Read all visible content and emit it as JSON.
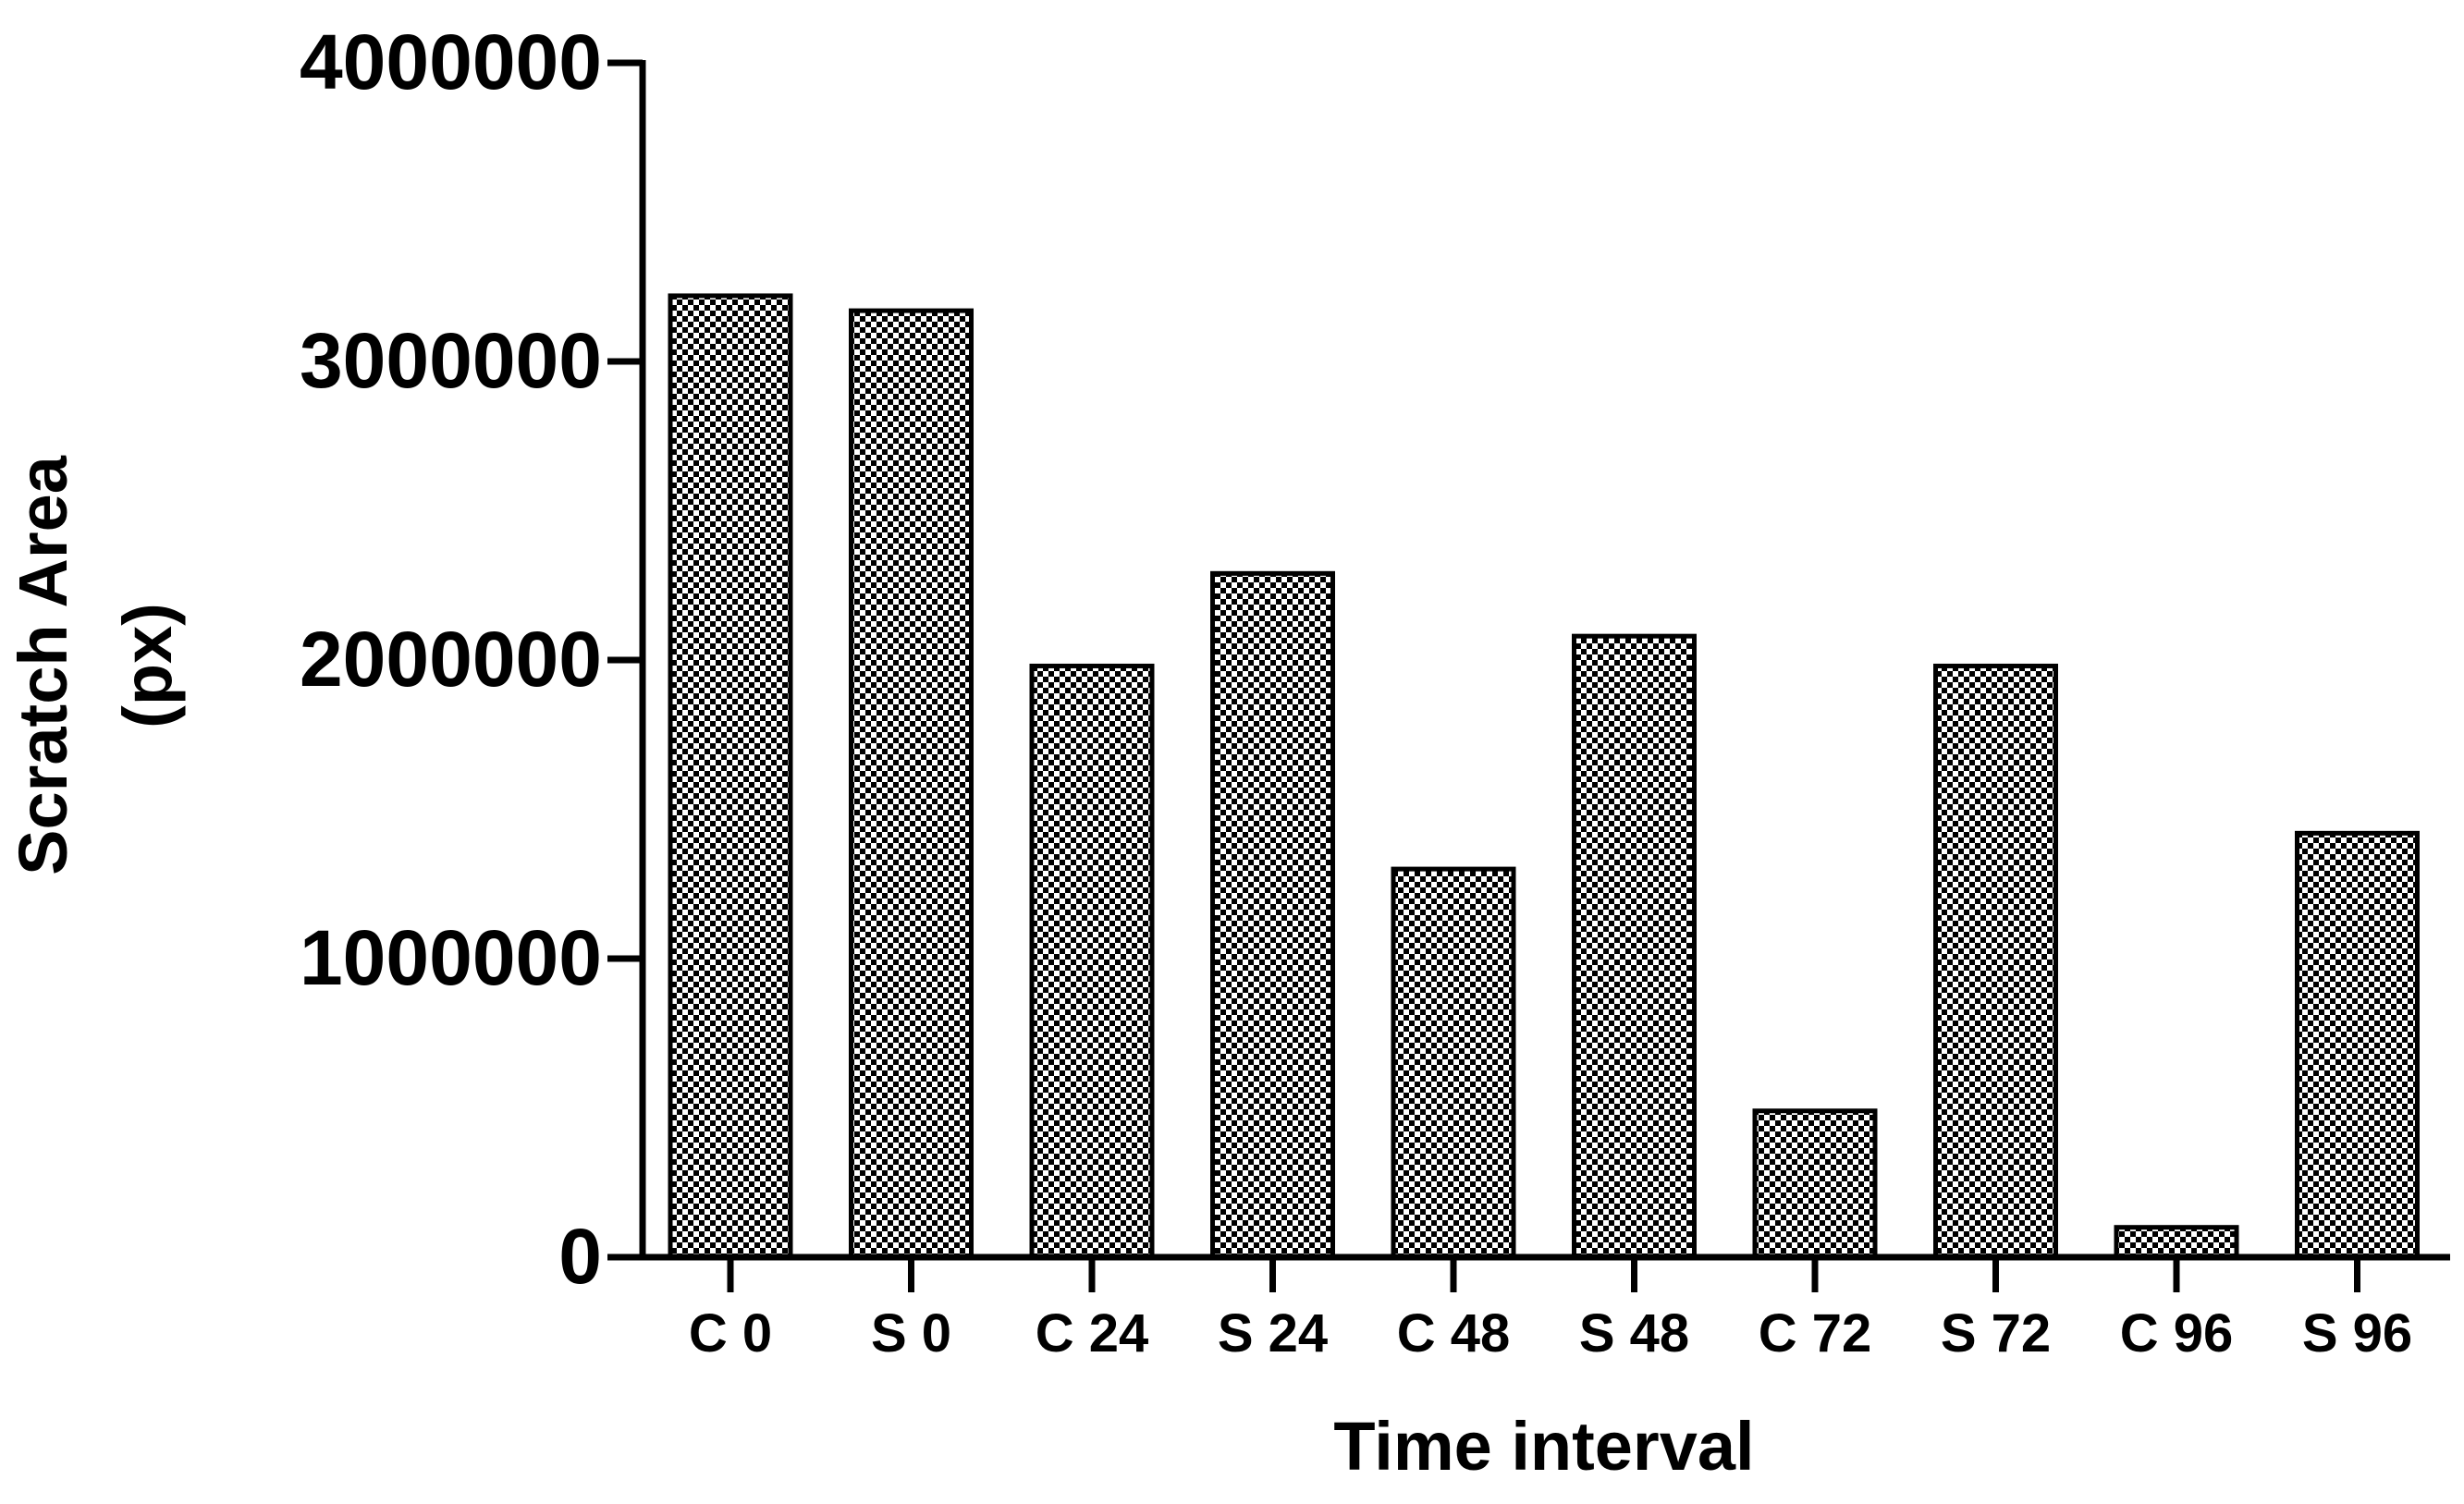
{
  "chart_data": {
    "type": "bar",
    "title": "",
    "xlabel": "Time interval",
    "ylabel_lines": [
      "Scratch Area",
      "(px)"
    ],
    "categories": [
      "C 0",
      "S 0",
      "C 24",
      "S 24",
      "C 48",
      "S 48",
      "C 72",
      "S 72",
      "C 96",
      "S 96"
    ],
    "values": [
      3220000,
      3170000,
      1980000,
      2290000,
      1300000,
      2080000,
      490000,
      1980000,
      100000,
      1420000
    ],
    "ylim": [
      0,
      4000000
    ],
    "yticks": [
      0,
      1000000,
      2000000,
      3000000,
      4000000
    ],
    "ytick_labels": [
      "0",
      "1000000",
      "2000000",
      "3000000",
      "4000000"
    ],
    "grid": false,
    "legend": "none",
    "colors": {
      "fill_pattern_dark": "#000000",
      "fill_pattern_light": "#ffffff",
      "bar_edge": "#000000",
      "axis": "#000000"
    }
  }
}
